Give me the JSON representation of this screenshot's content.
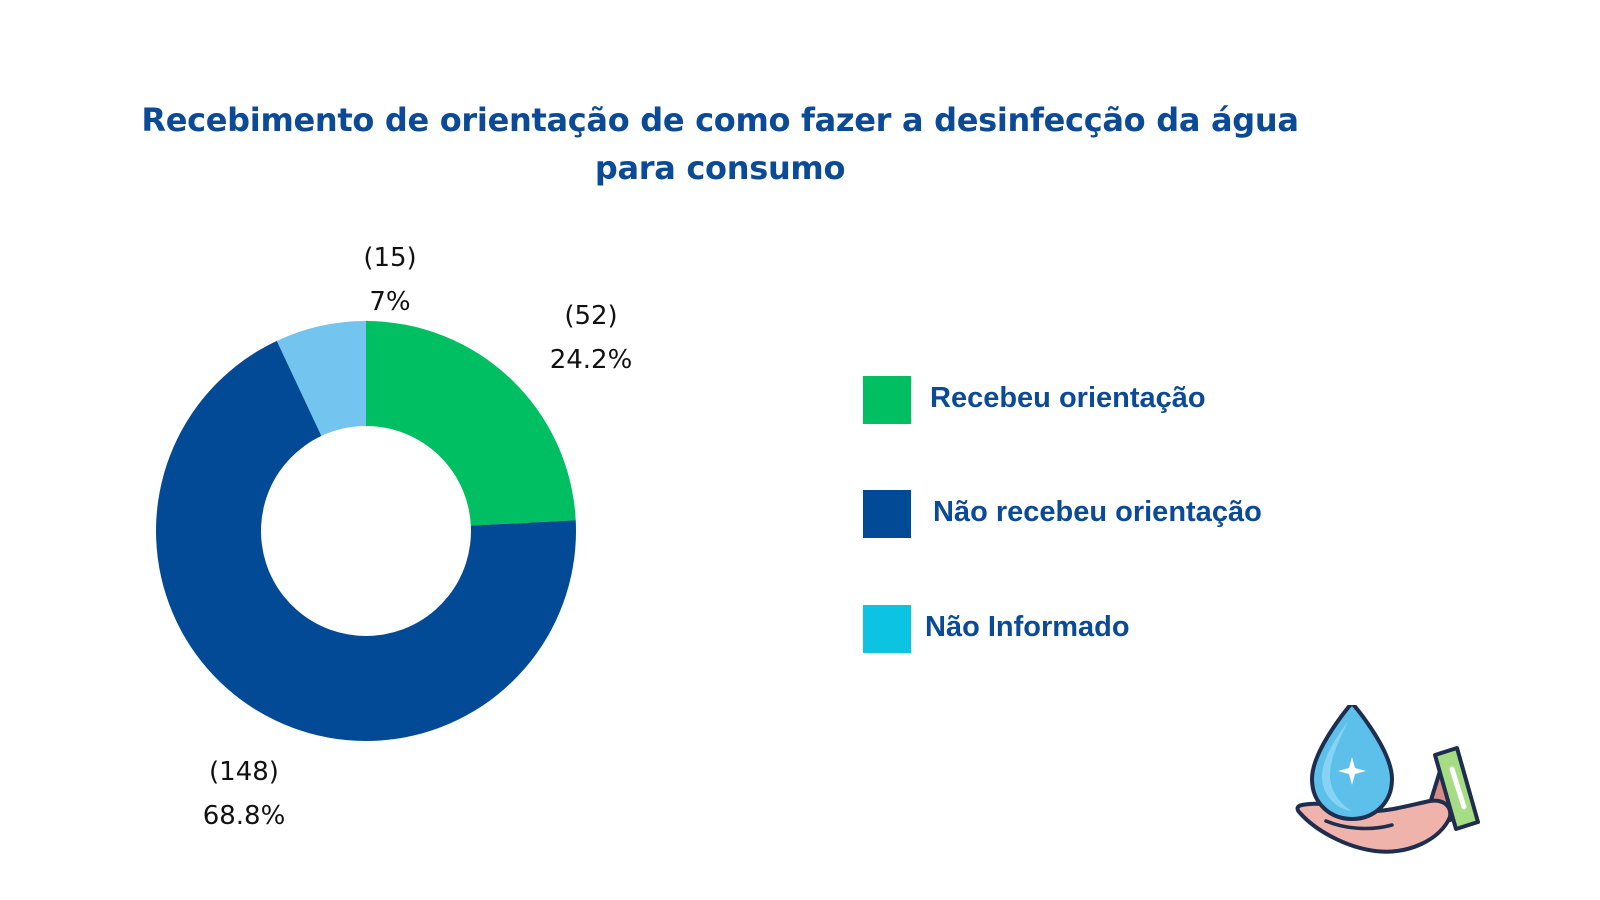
{
  "title": {
    "line1": "Recebimento de orientação de como fazer a desinfecção da água",
    "line2": "para consumo"
  },
  "chart_data": {
    "type": "pie",
    "variant": "donut",
    "title": "Recebimento de orientação de como fazer a desinfecção da água para consumo",
    "categories": [
      "Recebeu orientação",
      "Não recebeu orientação",
      "Não Informado"
    ],
    "values": [
      52,
      148,
      15
    ],
    "percent_labels": [
      "24.2%",
      "68.8%",
      "7%"
    ],
    "count_labels": [
      "(52)",
      "(148)",
      "(15)"
    ],
    "colors": [
      "#00be62",
      "#034a96",
      "#73c4ef"
    ],
    "legend_colors": [
      "#00be62",
      "#034a96",
      "#0cc3e1"
    ],
    "legend_position": "right",
    "start_angle": "12 o'clock, clockwise"
  },
  "legend": {
    "items": [
      {
        "label": "Recebeu orientação",
        "color": "#00be62"
      },
      {
        "label": "Não recebeu orientação",
        "color": "#034a96"
      },
      {
        "label": "Não Informado",
        "color": "#0cc3e1"
      }
    ]
  },
  "illustration": {
    "icon": "water-drop-in-hand-icon"
  }
}
